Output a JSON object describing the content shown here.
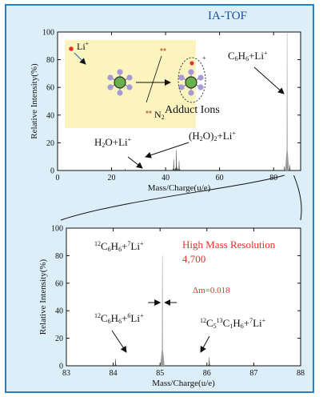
{
  "figure": {
    "label": "IA-TOF"
  },
  "chart_data": [
    {
      "type": "bar",
      "xlabel": "Mass/Charge(u/e)",
      "ylabel": "Relative Intensity(%)",
      "xlim": [
        0,
        90
      ],
      "ylim": [
        0,
        100
      ],
      "xticks": [
        0,
        20,
        40,
        60,
        80
      ],
      "yticks": [
        0,
        20,
        40,
        60,
        80,
        100
      ],
      "x": [
        25,
        43,
        44,
        45,
        84,
        85,
        86
      ],
      "values": [
        1,
        8,
        15,
        7,
        3,
        100,
        4
      ],
      "annotations": [
        {
          "id": "h2o_li",
          "html_text": "H<span class='sub'>2</span>O+Li<span class='sup'>+</span>"
        },
        {
          "id": "h2o2_li",
          "html_text": "(H<span class='sub'>2</span>O)<span class='sub'>2</span>+Li<span class='sup'>+</span>"
        },
        {
          "id": "c6h6_li",
          "html_text": "C<span class='sub'>6</span>H<span class='sub'>6</span>+Li<span class='sup'>+</span>"
        }
      ],
      "inset": {
        "li_label": "Li",
        "li_sup": "+",
        "n2_label": "N",
        "n2_sub": "2",
        "adduct_sup": "+",
        "caption": "Adduct Ions"
      }
    },
    {
      "type": "bar",
      "xlabel": "Mass/Charge(u/e)",
      "ylabel": "Relative Intensity(%)",
      "xlim": [
        83,
        88
      ],
      "ylim": [
        0,
        100
      ],
      "xticks": [
        83,
        84,
        85,
        86,
        87,
        88
      ],
      "yticks": [
        0,
        20,
        40,
        60,
        80,
        100
      ],
      "x": [
        84.05,
        85.05,
        86.05
      ],
      "values": [
        5,
        80,
        6
      ],
      "annotations": [
        {
          "id": "main",
          "html_text": "<span class='sup'>12</span>C<span class='sub'>6</span>H<span class='sub'>6</span>+<span class='sup'>7</span>Li<span class='sup'>+</span>"
        },
        {
          "id": "li6",
          "html_text": "<span class='sup'>12</span>C<span class='sub'>6</span>H<span class='sub'>6</span>+<span class='sup'>6</span>Li<span class='sup'>+</span>"
        },
        {
          "id": "c13",
          "html_text": "<span class='sup'>12</span>C<span class='sub'>5</span><span class='sup'>13</span>C<span class='sub'>1</span>H<span class='sub'>6</span>+<span class='sup'>7</span>Li<span class='sup'>+</span>"
        }
      ],
      "resolution_title": "High Mass Resolution",
      "resolution_value": "4,700",
      "delta_m": "Δm=0.018"
    }
  ],
  "colors": {
    "frame_bg": "#dceef8",
    "frame_border": "#2a80bf",
    "plot_bg": "#ffffff",
    "inset_bg": "#fbf4be",
    "label_blue": "#1a4f9a",
    "highlight_red": "#e8302a",
    "molecule_center": "#6ab04c",
    "molecule_arm": "#a69bd6",
    "n2_color": "#c87f50",
    "li_color": "#e8302a"
  }
}
